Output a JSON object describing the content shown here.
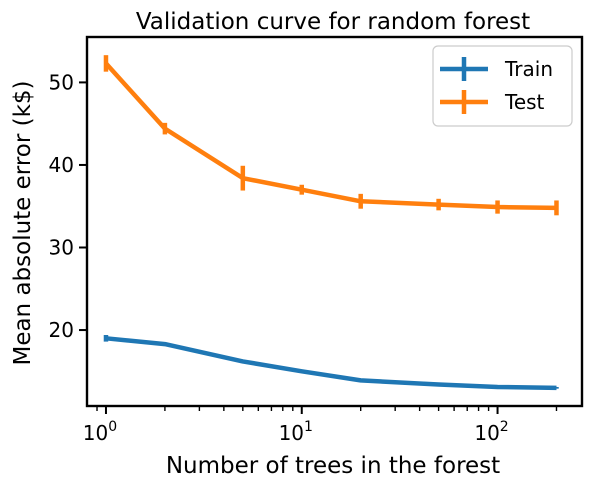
{
  "chart_data": {
    "type": "line",
    "title": "Validation curve for random forest",
    "xlabel": "Number of trees in the forest",
    "ylabel": "Mean absolute error (k$)",
    "xscale": "log",
    "xlim": [
      0.8,
      270
    ],
    "ylim": [
      10.8,
      55.5
    ],
    "x": [
      1,
      2,
      5,
      10,
      20,
      50,
      100,
      200
    ],
    "series": [
      {
        "name": "Train",
        "color": "#1f77b4",
        "values": [
          19.0,
          18.3,
          16.2,
          15.0,
          13.9,
          13.4,
          13.1,
          13.0
        ],
        "errors": [
          0.4,
          0.2,
          0.2,
          0.15,
          0.15,
          0.1,
          0.1,
          0.1
        ]
      },
      {
        "name": "Test",
        "color": "#ff7f0e",
        "values": [
          52.3,
          44.4,
          38.4,
          37.0,
          35.6,
          35.2,
          34.9,
          34.8
        ],
        "errors": [
          1.0,
          0.7,
          1.5,
          0.6,
          0.9,
          0.7,
          0.8,
          0.9
        ]
      }
    ],
    "x_ticks": [
      {
        "value": 1,
        "base": "10",
        "exp": "0"
      },
      {
        "value": 10,
        "base": "10",
        "exp": "1"
      },
      {
        "value": 100,
        "base": "10",
        "exp": "2"
      }
    ],
    "y_ticks": [
      {
        "value": 20,
        "label": "20"
      },
      {
        "value": 30,
        "label": "30"
      },
      {
        "value": 40,
        "label": "40"
      },
      {
        "value": 50,
        "label": "50"
      }
    ],
    "legend_position": "top-right",
    "grid": false
  }
}
